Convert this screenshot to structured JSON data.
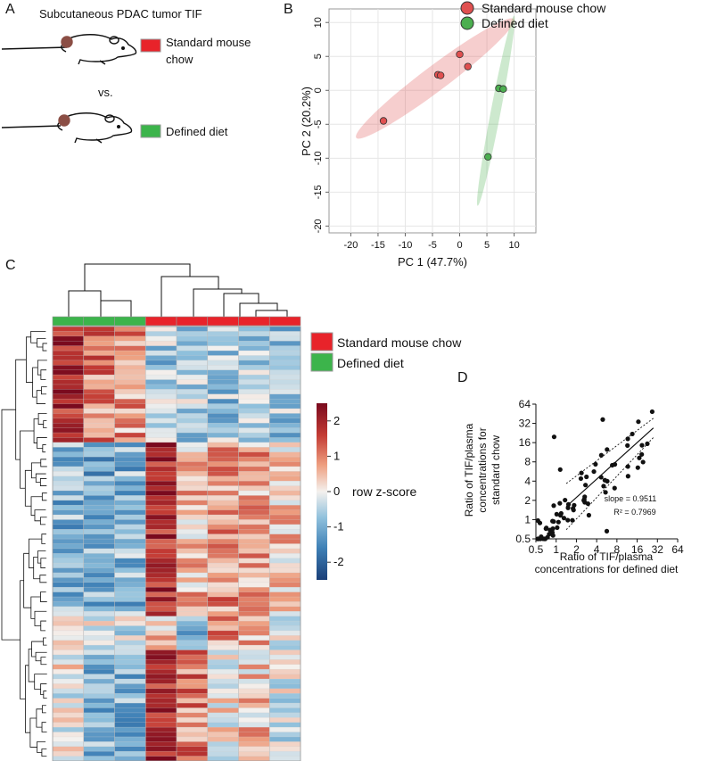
{
  "panel_labels": {
    "a": "A",
    "b": "B",
    "c": "C",
    "d": "D"
  },
  "panel_a": {
    "title": "Subcutaneous PDAC tumor TIF",
    "group1_line1": "Standard mouse",
    "group1_line2": "chow",
    "vs": "vs.",
    "group2": "Defined diet"
  },
  "colors": {
    "standard": "#e8232a",
    "defined": "#3cb44b",
    "heat_high": "#7a0a1e",
    "heat_low": "#1b4f86"
  },
  "chart_data": [
    {
      "type": "scatter",
      "name": "PCA",
      "xlabel": "PC 1 (47.7%)",
      "ylabel": "PC 2 (20.2%)",
      "xlim": [
        -24,
        14
      ],
      "ylim": [
        -21,
        12
      ],
      "xticks": [
        -20,
        -15,
        -10,
        -5,
        0,
        5,
        10
      ],
      "yticks": [
        10,
        5,
        0,
        -5,
        -10,
        -15,
        -20
      ],
      "grid": true,
      "legend": {
        "position": "top-right",
        "entries": [
          "Standard mouse chow",
          "Defined diet"
        ]
      },
      "series": [
        {
          "name": "Standard mouse chow",
          "color": "#e05050",
          "points": [
            [
              -14,
              -4.5
            ],
            [
              -4,
              2.3
            ],
            [
              -3.5,
              2.2
            ],
            [
              0,
              5.3
            ],
            [
              1.5,
              3.5
            ]
          ],
          "ellipse": {
            "start": [
              -19,
              -7
            ],
            "end": [
              10,
              10.5
            ],
            "half_width": 2.3
          }
        },
        {
          "name": "Defined diet",
          "color": "#4caf50",
          "points": [
            [
              7.2,
              0.3
            ],
            [
              8,
              0.2
            ],
            [
              5.2,
              -9.8
            ]
          ],
          "ellipse": {
            "start": [
              3.3,
              -17
            ],
            "end": [
              10,
              11
            ],
            "half_width": 0.9
          }
        }
      ]
    },
    {
      "type": "heatmap",
      "name": "Heatmap",
      "rows": 90,
      "columns": 8,
      "column_groups": [
        "Defined diet",
        "Defined diet",
        "Defined diet",
        "Standard mouse chow",
        "Standard mouse chow",
        "Standard mouse chow",
        "Standard mouse chow",
        "Standard mouse chow"
      ],
      "legend": {
        "entries": [
          "Standard mouse chow",
          "Defined diet"
        ]
      },
      "colorbar": {
        "label": "row z-score",
        "range": [
          -2.5,
          2.5
        ],
        "ticks": [
          "2",
          "1",
          "0",
          "-1",
          "-2"
        ]
      }
    },
    {
      "type": "scatter",
      "name": "TIF ratio",
      "xlabel_line1": "Ratio of TIF/plasma",
      "xlabel_line2": "concentrations for defined diet",
      "ylabel_line1": "Ratio of TIF/plasma",
      "ylabel_line2": "concentrations for",
      "ylabel_line3": "standard chow",
      "scale": "log2",
      "xticks": [
        "0.5",
        "1",
        "2",
        "4",
        "8",
        "16",
        "32",
        "64"
      ],
      "yticks": [
        "64",
        "32",
        "16",
        "8",
        "4",
        "2",
        "1",
        "0.5"
      ],
      "xlim": [
        0.5,
        64
      ],
      "ylim": [
        0.5,
        64
      ],
      "annotations": {
        "slope": "slope = 0.9511",
        "r2": "R² = 0.7969"
      },
      "fit": {
        "slope": 0.9511,
        "r2": 0.7969
      }
    }
  ]
}
